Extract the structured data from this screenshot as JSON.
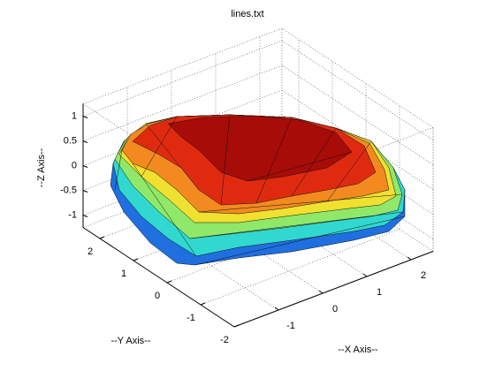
{
  "chart_data": {
    "type": "surface3d",
    "title": "lines.txt",
    "xlabel": "--X Axis--",
    "ylabel": "--Y Axis--",
    "zlabel": "--Z Axis--",
    "xlim": [
      -2,
      2.5
    ],
    "ylim": [
      -2,
      2.5
    ],
    "zlim": [
      -1.25,
      1.25
    ],
    "xticks": [
      -1,
      0,
      1,
      2
    ],
    "yticks": [
      -2,
      -1,
      0,
      1,
      2
    ],
    "zticks": [
      -1,
      -0.5,
      0,
      0.5,
      1
    ],
    "grid": true
  }
}
